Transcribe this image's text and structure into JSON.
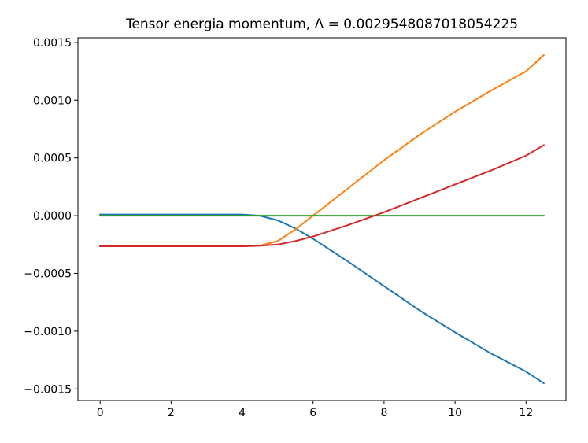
{
  "chart_data": {
    "type": "line",
    "title": "Tensor energia momentum, Λ = 0.0029548087018054225",
    "xlabel": "",
    "ylabel": "",
    "xlim": [
      -0.625,
      13.125
    ],
    "ylim": [
      -0.0016,
      0.00154
    ],
    "x_ticks": [
      0,
      2,
      4,
      6,
      8,
      10,
      12
    ],
    "x_tick_labels": [
      "0",
      "2",
      "4",
      "6",
      "8",
      "10",
      "12"
    ],
    "y_ticks": [
      -0.0015,
      -0.001,
      -0.0005,
      0.0,
      0.0005,
      0.001,
      0.0015
    ],
    "y_tick_labels": [
      "−0.0015",
      "−0.0010",
      "−0.0005",
      "0.0000",
      "0.0005",
      "0.0010",
      "0.0015"
    ],
    "grid": false,
    "legend": "none",
    "series": [
      {
        "color": "#1f77b4",
        "x": [
          0,
          1,
          2,
          3,
          4,
          4.5,
          5,
          5.5,
          6,
          6.5,
          7,
          8,
          9,
          10,
          11,
          12,
          12.5
        ],
        "y": [
          1e-05,
          1e-05,
          1e-05,
          1e-05,
          1e-05,
          0.0,
          -4e-05,
          -0.00011,
          -0.0002,
          -0.0003,
          -0.0004,
          -0.00061,
          -0.00082,
          -0.00101,
          -0.00119,
          -0.00135,
          -0.00145
        ]
      },
      {
        "color": "#ff7f0e",
        "x": [
          0,
          1,
          2,
          3,
          4,
          4.5,
          5,
          5.5,
          6,
          6.5,
          7,
          8,
          9,
          10,
          11,
          12,
          12.5
        ],
        "y": [
          -0.000265,
          -0.000265,
          -0.000265,
          -0.000265,
          -0.000265,
          -0.00026,
          -0.00022,
          -0.00012,
          0.0,
          0.00012,
          0.00024,
          0.00048,
          0.0007,
          0.0009,
          0.00108,
          0.00125,
          0.00139
        ]
      },
      {
        "color": "#2ca02c",
        "x": [
          0,
          12.5
        ],
        "y": [
          0.0,
          0.0
        ]
      },
      {
        "color": "#d62728",
        "x": [
          0,
          1,
          2,
          3,
          4,
          4.5,
          5,
          5.5,
          6,
          6.5,
          7,
          8,
          9,
          10,
          11,
          12,
          12.5
        ],
        "y": [
          -0.000265,
          -0.000265,
          -0.000265,
          -0.000265,
          -0.000265,
          -0.00026,
          -0.00025,
          -0.00022,
          -0.00018,
          -0.00013,
          -8e-05,
          3e-05,
          0.00015,
          0.00027,
          0.00039,
          0.00052,
          0.00061
        ]
      }
    ]
  }
}
